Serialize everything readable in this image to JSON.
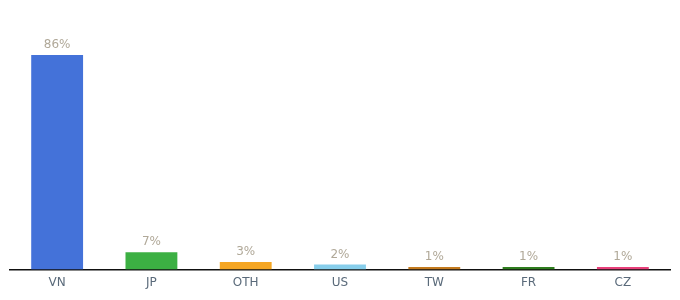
{
  "chart_data": {
    "type": "bar",
    "categories": [
      "VN",
      "JP",
      "OTH",
      "US",
      "TW",
      "FR",
      "CZ"
    ],
    "values": [
      86,
      7,
      3,
      2,
      1,
      1,
      1
    ],
    "value_labels": [
      "86%",
      "7%",
      "3%",
      "2%",
      "1%",
      "1%",
      "1%"
    ],
    "data_labels": true,
    "colors": [
      "#4472d9",
      "#3cb043",
      "#f5a623",
      "#87ceeb",
      "#c47a1e",
      "#2e7d1e",
      "#e8407a"
    ],
    "ylim": [
      0,
      100
    ],
    "tick_labels": "x",
    "grid": false
  }
}
